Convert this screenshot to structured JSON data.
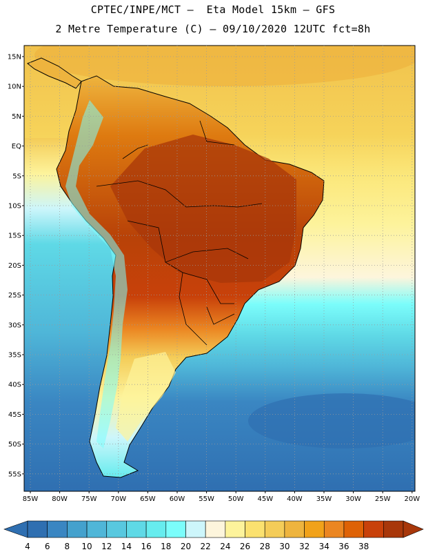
{
  "header": {
    "line1": "CPTEC/INPE/MCT –  Eta Model 15km – GFS",
    "line2": "2 Metre Temperature (C) – 09/10/2020 12UTC fct=8h"
  },
  "map": {
    "lat_labels": [
      "15N",
      "10N",
      "5N",
      "EQ",
      "5S",
      "10S",
      "15S",
      "20S",
      "25S",
      "30S",
      "35S",
      "40S",
      "45S",
      "50S",
      "55S"
    ],
    "lon_labels": [
      "85W",
      "80W",
      "75W",
      "70W",
      "65W",
      "60W",
      "55W",
      "50W",
      "45W",
      "40W",
      "35W",
      "30W",
      "25W",
      "20W"
    ]
  },
  "colorbar": {
    "labels": [
      "4",
      "6",
      "8",
      "10",
      "12",
      "14",
      "16",
      "18",
      "20",
      "22",
      "24",
      "26",
      "28",
      "30",
      "32",
      "34",
      "36",
      "38"
    ],
    "colors": [
      "#2f6fb1",
      "#3a86c2",
      "#44a1cd",
      "#4fb6d8",
      "#58c8df",
      "#5fd9e6",
      "#66ecee",
      "#7bfdfb",
      "#cdf6fb",
      "#fdf5dc",
      "#fdf39b",
      "#fbe16f",
      "#f4cc58",
      "#eeb43e",
      "#f1a21a",
      "#eb8622",
      "#de6206",
      "#c8410a",
      "#a8370a"
    ]
  }
}
